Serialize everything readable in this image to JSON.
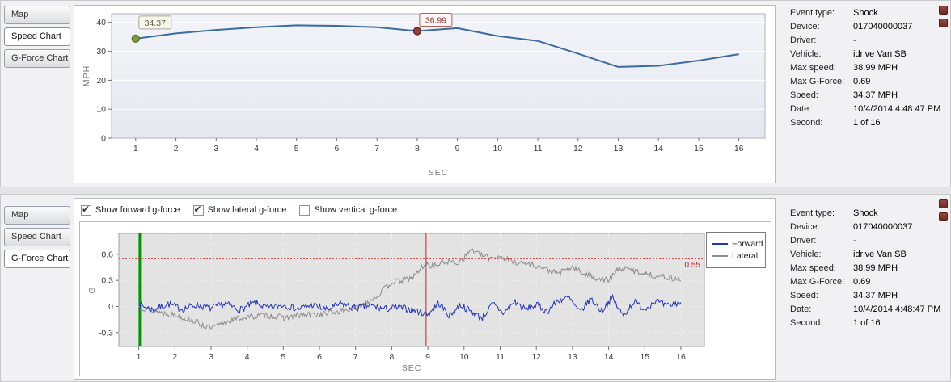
{
  "colors": {
    "speed_line": "#3a6ba3",
    "forward": "#2233bb",
    "lateral": "#8c8c8c",
    "threshold": "#cc2222",
    "plot_bg_top": "#edeff5",
    "plot_bg_bottom": "#e3e3e3"
  },
  "tabs": [
    {
      "label": "Map"
    },
    {
      "label": "Speed Chart"
    },
    {
      "label": "G-Force Chart"
    }
  ],
  "checkboxes": [
    {
      "label": "Show forward g-force",
      "checked": true
    },
    {
      "label": "Show lateral g-force",
      "checked": true
    },
    {
      "label": "Show vertical g-force",
      "checked": false
    }
  ],
  "event_info": {
    "rows": [
      {
        "label": "Event type:",
        "value": "Shock"
      },
      {
        "label": "Device:",
        "value": "017040000037"
      },
      {
        "label": "Driver:",
        "value": "-"
      },
      {
        "label": "Vehicle:",
        "value": "idrive Van SB"
      },
      {
        "label": "Max speed:",
        "value": "38.99 MPH"
      },
      {
        "label": "Max G-Force:",
        "value": "0.69"
      },
      {
        "label": "Speed:",
        "value": "34.37 MPH"
      },
      {
        "label": "Date:",
        "value": "10/4/2014 4:48:47 PM"
      },
      {
        "label": "Second:",
        "value": "1 of 16"
      }
    ]
  },
  "chart_data": [
    {
      "type": "line",
      "title": "Speed Chart",
      "xlabel": "SEC",
      "ylabel": "MPH",
      "x": [
        1,
        2,
        3,
        4,
        5,
        6,
        7,
        8,
        9,
        10,
        11,
        12,
        13,
        14,
        15,
        16
      ],
      "values": [
        34.37,
        36.2,
        37.4,
        38.3,
        38.99,
        38.8,
        38.3,
        36.99,
        38.0,
        35.3,
        33.6,
        29.2,
        24.6,
        25.0,
        26.8,
        29.0
      ],
      "xlim": [
        0.4,
        16.65
      ],
      "ylim": [
        0,
        43
      ],
      "yticks": [
        0,
        10,
        20,
        30,
        40
      ],
      "grid": "horizontal",
      "annotations": [
        {
          "x": 1,
          "y": 34.37,
          "label": "34.37",
          "name": "start-marker",
          "fill": "#7d9b3c",
          "stroke": "#56741f",
          "box_bg": "#f6f6ec",
          "box_border": "#a8a894",
          "box_text": "#5f5f45",
          "box_dx": 4,
          "box_dy": -28
        },
        {
          "x": 8,
          "y": 36.99,
          "label": "36.99",
          "name": "event-marker",
          "fill": "#96403a",
          "stroke": "#68211d",
          "box_bg": "#fdf5f5",
          "box_border": "#b2625e",
          "box_text": "#8c3a35",
          "box_dx": 3,
          "box_dy": -22
        }
      ]
    },
    {
      "type": "line",
      "title": "G-Force Chart",
      "xlabel": "SEC",
      "ylabel": "G",
      "x": [
        1,
        2,
        3,
        4,
        5,
        6,
        7,
        8,
        9,
        10,
        11,
        12,
        13,
        14,
        15,
        16
      ],
      "xlim": [
        0.45,
        16.65
      ],
      "ylim": [
        -0.46,
        0.84
      ],
      "yticks": [
        -0.3,
        0,
        0.3,
        0.6
      ],
      "grid": "both",
      "legend_position": "right",
      "threshold": {
        "value": 0.55,
        "label": "0.55"
      },
      "cursors": [
        {
          "x": 1.03,
          "color": "#009400",
          "width": 3,
          "name": "start-cursor"
        },
        {
          "x": 8.95,
          "color": "#cc2222",
          "width": 1,
          "name": "event-cursor"
        }
      ],
      "series": [
        {
          "name": "Forward",
          "color": "#2233bb",
          "noise": 0.04,
          "seed": 7,
          "anchors": [
            [
              1,
              0.02
            ],
            [
              1.4,
              -0.04
            ],
            [
              1.8,
              0.03
            ],
            [
              2.2,
              -0.03
            ],
            [
              2.6,
              0.02
            ],
            [
              3,
              -0.02
            ],
            [
              3.4,
              0.03
            ],
            [
              3.8,
              -0.04
            ],
            [
              4.2,
              0.04
            ],
            [
              4.6,
              -0.02
            ],
            [
              5,
              0.02
            ],
            [
              5.4,
              -0.03
            ],
            [
              5.8,
              0.02
            ],
            [
              6.2,
              -0.04
            ],
            [
              6.6,
              0.03
            ],
            [
              7,
              -0.02
            ],
            [
              7.4,
              0.01
            ],
            [
              7.8,
              -0.03
            ],
            [
              8.2,
              -0.01
            ],
            [
              8.6,
              -0.04
            ],
            [
              9,
              -0.09
            ],
            [
              9.3,
              0.04
            ],
            [
              9.6,
              -0.11
            ],
            [
              9.9,
              0.02
            ],
            [
              10.2,
              -0.06
            ],
            [
              10.5,
              -0.13
            ],
            [
              10.8,
              0.03
            ],
            [
              11.1,
              -0.08
            ],
            [
              11.4,
              0.06
            ],
            [
              11.7,
              -0.04
            ],
            [
              12,
              0.02
            ],
            [
              12.3,
              -0.06
            ],
            [
              12.6,
              0.07
            ],
            [
              12.9,
              0.1
            ],
            [
              13.2,
              -0.07
            ],
            [
              13.5,
              0.09
            ],
            [
              13.8,
              -0.05
            ],
            [
              14.1,
              0.1
            ],
            [
              14.4,
              -0.11
            ],
            [
              14.7,
              0.06
            ],
            [
              15,
              -0.03
            ],
            [
              15.3,
              0.07
            ],
            [
              15.6,
              0.0
            ],
            [
              16,
              0.05
            ]
          ]
        },
        {
          "name": "Lateral",
          "color": "#8c8c8c",
          "noise": 0.035,
          "seed": 13,
          "anchors": [
            [
              1,
              0.0
            ],
            [
              1.5,
              -0.06
            ],
            [
              2,
              -0.1
            ],
            [
              2.5,
              -0.16
            ],
            [
              2.8,
              -0.22
            ],
            [
              3,
              -0.25
            ],
            [
              3.3,
              -0.2
            ],
            [
              3.6,
              -0.15
            ],
            [
              4,
              -0.12
            ],
            [
              4.5,
              -0.1
            ],
            [
              5,
              -0.13
            ],
            [
              5.5,
              -0.1
            ],
            [
              6,
              -0.09
            ],
            [
              6.5,
              -0.06
            ],
            [
              7,
              -0.02
            ],
            [
              7.3,
              0.05
            ],
            [
              7.6,
              0.12
            ],
            [
              8,
              0.28
            ],
            [
              8.3,
              0.3
            ],
            [
              8.6,
              0.34
            ],
            [
              8.9,
              0.48
            ],
            [
              9.2,
              0.47
            ],
            [
              9.5,
              0.52
            ],
            [
              9.8,
              0.5
            ],
            [
              10,
              0.56
            ],
            [
              10.2,
              0.66
            ],
            [
              10.4,
              0.6
            ],
            [
              10.7,
              0.56
            ],
            [
              11,
              0.58
            ],
            [
              11.3,
              0.52
            ],
            [
              11.6,
              0.5
            ],
            [
              12,
              0.47
            ],
            [
              12.3,
              0.42
            ],
            [
              12.6,
              0.38
            ],
            [
              13,
              0.45
            ],
            [
              13.3,
              0.38
            ],
            [
              13.6,
              0.33
            ],
            [
              14,
              0.3
            ],
            [
              14.3,
              0.44
            ],
            [
              14.6,
              0.42
            ],
            [
              15,
              0.38
            ],
            [
              15.3,
              0.35
            ],
            [
              15.6,
              0.34
            ],
            [
              16,
              0.3
            ]
          ]
        }
      ]
    }
  ]
}
